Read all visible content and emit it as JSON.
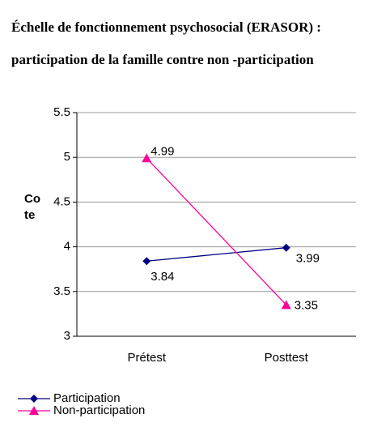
{
  "chart_data": {
    "type": "line",
    "title": [
      "Échelle de fonctionnement psychosocial (ERASOR) :",
      "participation de la famille contre non -participation"
    ],
    "y_label": "Cote",
    "categories": [
      "Prétest",
      "Posttest"
    ],
    "series": [
      {
        "name": "Participation",
        "color": "#000080",
        "marker": "diamond",
        "values": [
          3.84,
          3.99
        ]
      },
      {
        "name": "Non-participation",
        "color": "#ff0099",
        "marker": "triangle",
        "values": [
          4.99,
          3.35
        ]
      }
    ],
    "ylim": [
      3,
      5.5
    ],
    "yticks": [
      3,
      3.5,
      4,
      4.5,
      5,
      5.5
    ],
    "grid": true
  }
}
